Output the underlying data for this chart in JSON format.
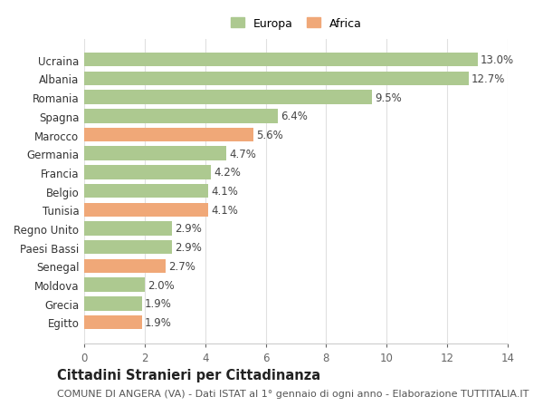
{
  "categories": [
    "Egitto",
    "Grecia",
    "Moldova",
    "Senegal",
    "Paesi Bassi",
    "Regno Unito",
    "Tunisia",
    "Belgio",
    "Francia",
    "Germania",
    "Marocco",
    "Spagna",
    "Romania",
    "Albania",
    "Ucraina"
  ],
  "values": [
    1.9,
    1.9,
    2.0,
    2.7,
    2.9,
    2.9,
    4.1,
    4.1,
    4.2,
    4.7,
    5.6,
    6.4,
    9.5,
    12.7,
    13.0
  ],
  "continents": [
    "Africa",
    "Europa",
    "Europa",
    "Africa",
    "Europa",
    "Europa",
    "Africa",
    "Europa",
    "Europa",
    "Europa",
    "Africa",
    "Europa",
    "Europa",
    "Europa",
    "Europa"
  ],
  "color_europa": "#adc990",
  "color_africa": "#f0a878",
  "bar_height": 0.75,
  "xlim": [
    0,
    14
  ],
  "xticks": [
    0,
    2,
    4,
    6,
    8,
    10,
    12,
    14
  ],
  "title": "Cittadini Stranieri per Cittadinanza",
  "subtitle": "COMUNE DI ANGERA (VA) - Dati ISTAT al 1° gennaio di ogni anno - Elaborazione TUTTITALIA.IT",
  "legend_europa": "Europa",
  "legend_africa": "Africa",
  "background_color": "#ffffff",
  "grid_color": "#e0e0e0",
  "label_fontsize": 8.5,
  "tick_fontsize": 8.5,
  "title_fontsize": 10.5,
  "subtitle_fontsize": 8.0
}
